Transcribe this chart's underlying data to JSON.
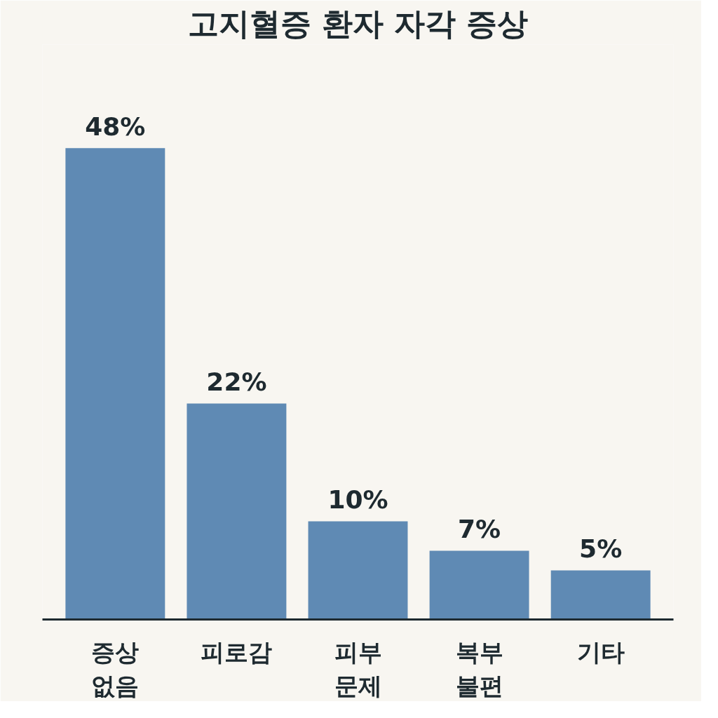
{
  "chart_data": {
    "type": "bar",
    "title": "고지혈증 환자 자각 증상",
    "categories": [
      "증상\n없음",
      "피로감",
      "피부\n문제",
      "복부\n불편",
      "기타"
    ],
    "values": [
      48,
      22,
      10,
      7,
      5
    ],
    "value_labels": [
      "48%",
      "22%",
      "10%",
      "7%",
      "5%"
    ],
    "color": "#5f8ab4",
    "grid": false
  }
}
